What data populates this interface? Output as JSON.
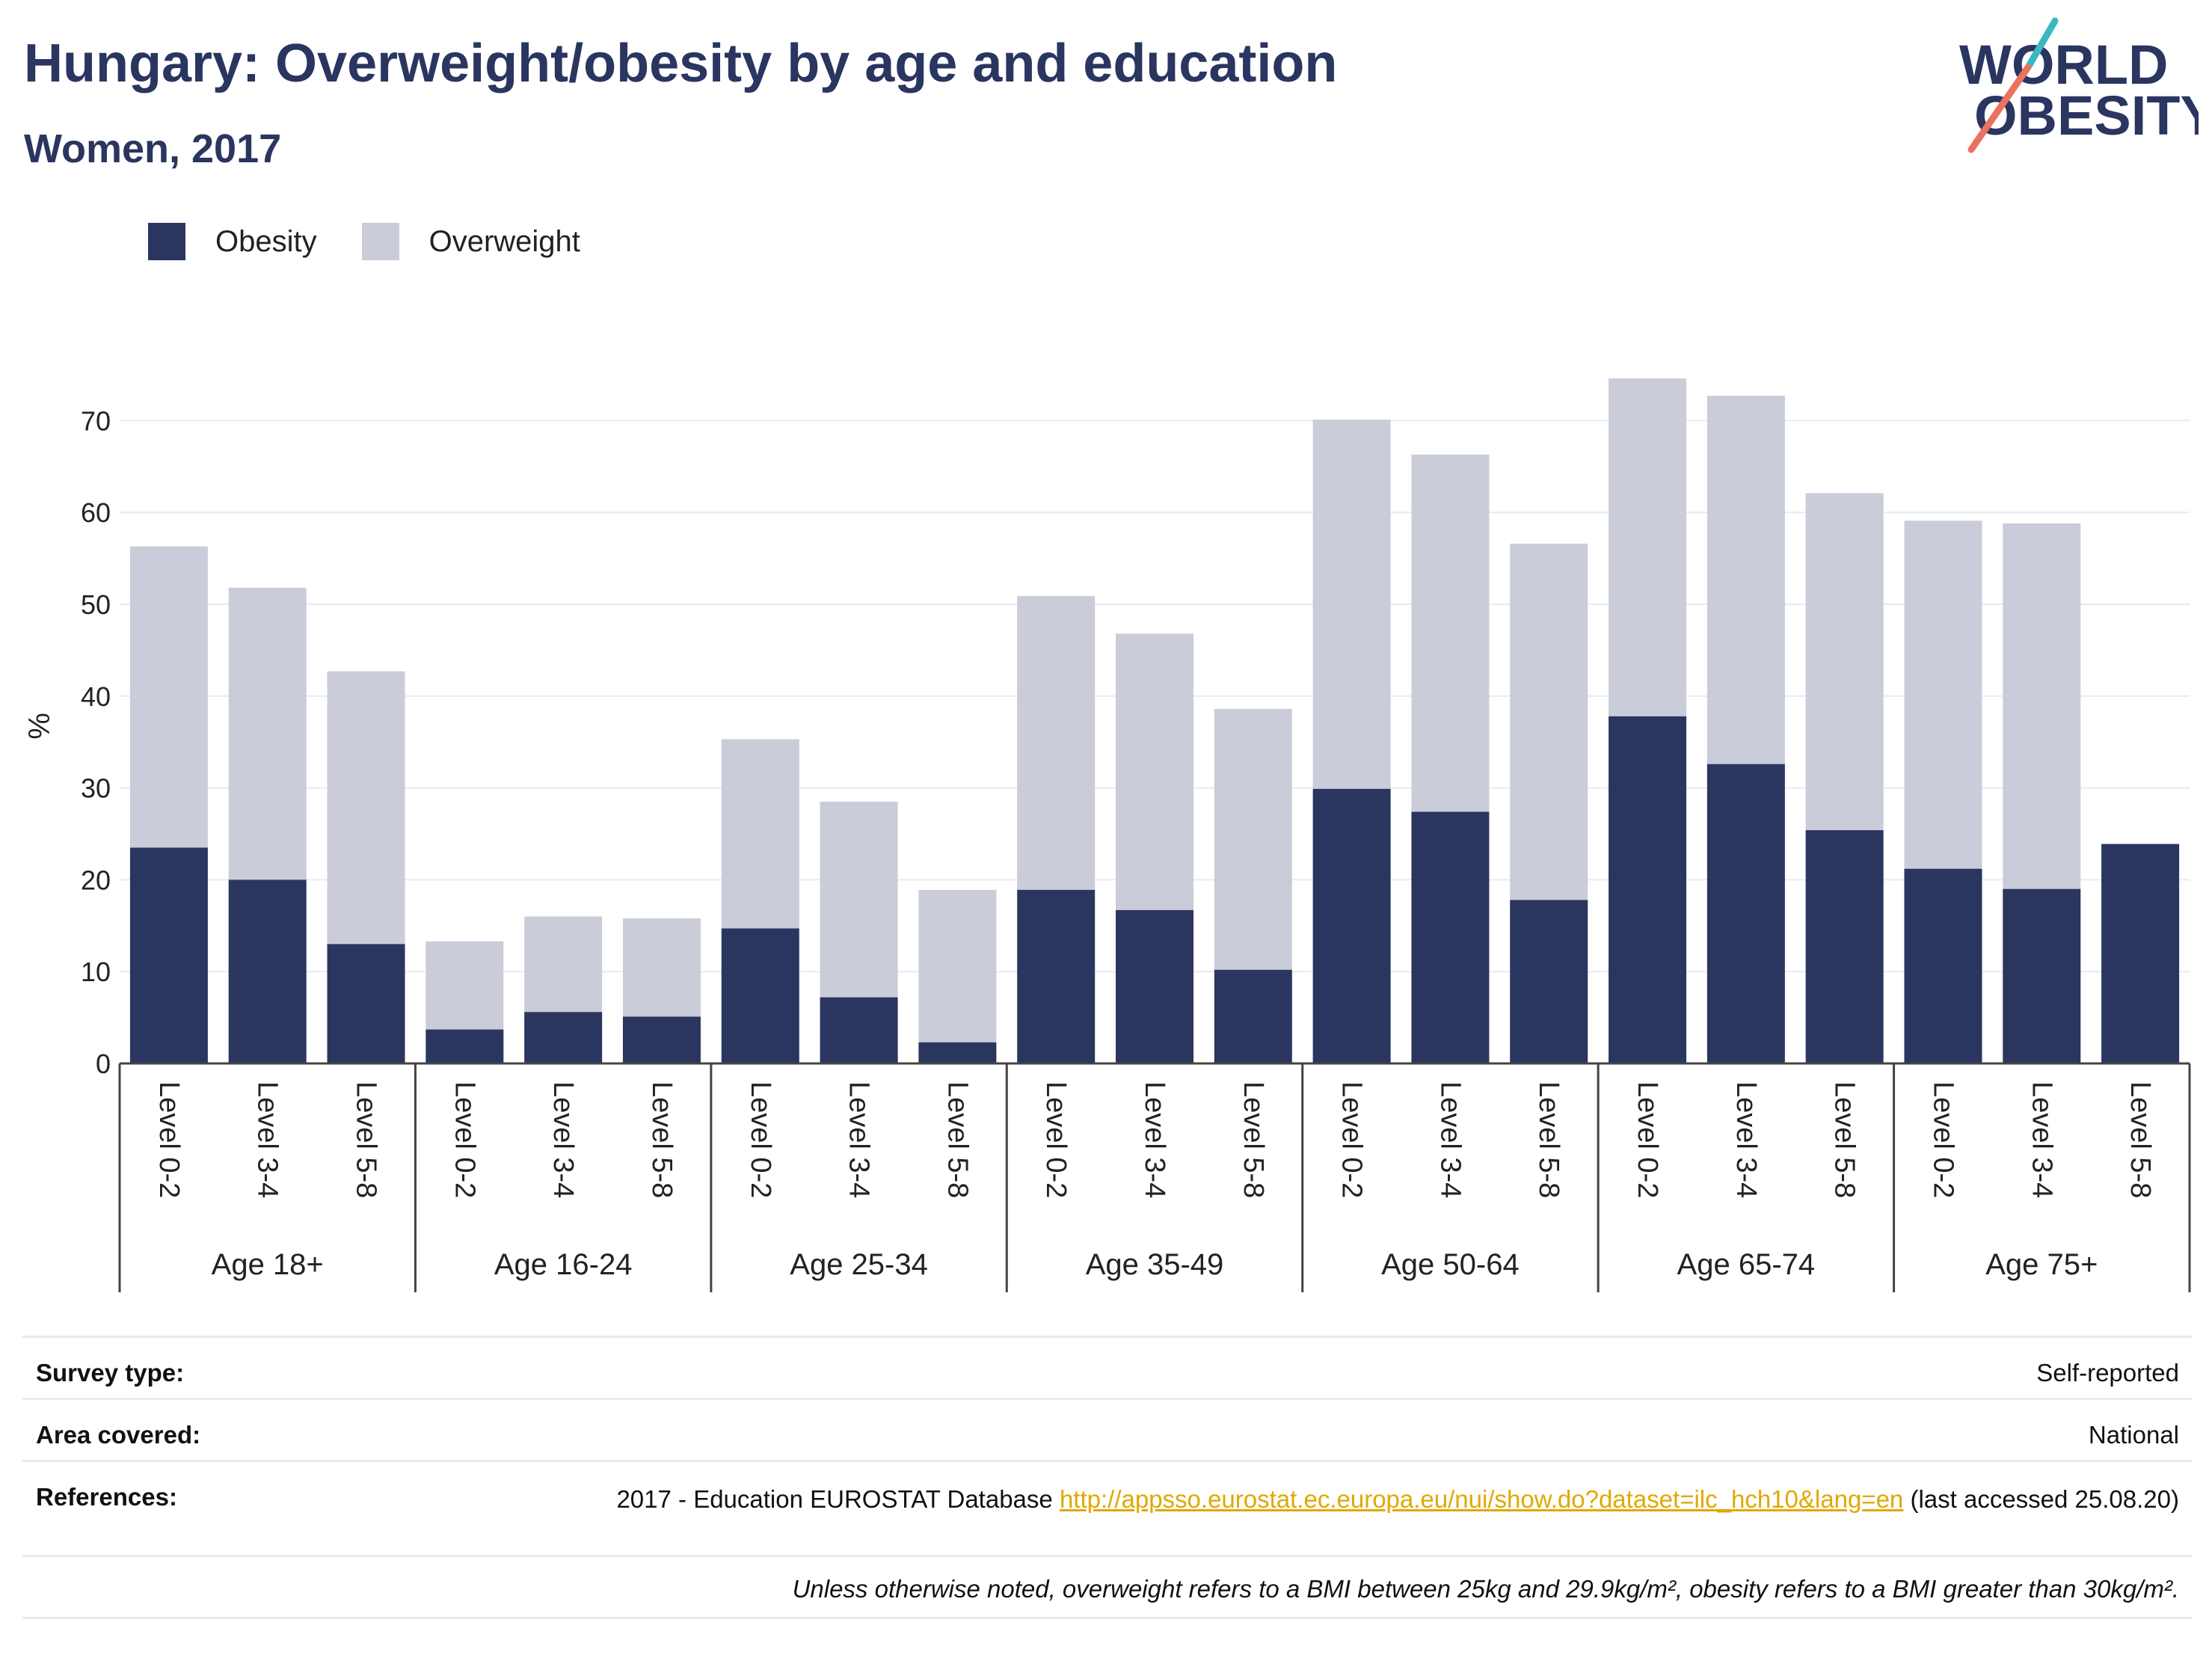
{
  "header": {
    "title": "Hungary: Overweight/obesity by age and education",
    "subtitle": "Women, 2017"
  },
  "logo": {
    "line1": "WORLD",
    "line2": "OBESITY"
  },
  "colors": {
    "obesity": "#2a3560",
    "overweight": "#cbccd9",
    "accent_teal": "#3ab8c1",
    "accent_coral": "#e8735e",
    "link": "#e0a800"
  },
  "chart_data": {
    "type": "bar",
    "stacked": true,
    "legend_position": "top-left",
    "grid": true,
    "ylabel": "%",
    "ylim": [
      0,
      80
    ],
    "yticks": [
      0,
      10,
      20,
      30,
      40,
      50,
      60,
      70
    ],
    "groups": [
      {
        "label": "Age 18+",
        "categories": [
          "Level 0-2",
          "Level 3-4",
          "Level 5-8"
        ]
      },
      {
        "label": "Age 16-24",
        "categories": [
          "Level 0-2",
          "Level 3-4",
          "Level 5-8"
        ]
      },
      {
        "label": "Age 25-34",
        "categories": [
          "Level 0-2",
          "Level 3-4",
          "Level 5-8"
        ]
      },
      {
        "label": "Age 35-49",
        "categories": [
          "Level 0-2",
          "Level 3-4",
          "Level 5-8"
        ]
      },
      {
        "label": "Age 50-64",
        "categories": [
          "Level 0-2",
          "Level 3-4",
          "Level 5-8"
        ]
      },
      {
        "label": "Age 65-74",
        "categories": [
          "Level 0-2",
          "Level 3-4",
          "Level 5-8"
        ]
      },
      {
        "label": "Age 75+",
        "categories": [
          "Level 0-2",
          "Level 3-4",
          "Level 5-8"
        ]
      }
    ],
    "series": [
      {
        "name": "Obesity",
        "values": [
          23.5,
          20.0,
          13.0,
          3.7,
          5.6,
          5.1,
          14.7,
          7.2,
          2.3,
          18.9,
          16.7,
          10.2,
          29.9,
          27.4,
          17.8,
          37.8,
          32.6,
          25.4,
          21.2,
          19.0,
          23.9
        ]
      },
      {
        "name": "Overweight",
        "values": [
          32.8,
          31.8,
          29.7,
          9.6,
          10.4,
          10.7,
          20.6,
          21.3,
          16.6,
          32.0,
          30.1,
          28.4,
          40.2,
          38.9,
          38.8,
          36.8,
          40.1,
          36.7,
          37.9,
          39.8,
          0
        ]
      }
    ]
  },
  "info": {
    "survey_type_label": "Survey type:",
    "survey_type_value": "Self-reported",
    "area_label": "Area covered:",
    "area_value": "National",
    "references_label": "References:",
    "references_prefix": "2017 - Education EUROSTAT Database ",
    "references_link": "http://appsso.eurostat.ec.europa.eu/nui/show.do?dataset=ilc_hch10&lang=en",
    "references_suffix": " (last accessed 25.08.20)",
    "note": "Unless otherwise noted, overweight refers to a BMI between 25kg and 29.9kg/m², obesity refers to a BMI greater than 30kg/m²."
  }
}
